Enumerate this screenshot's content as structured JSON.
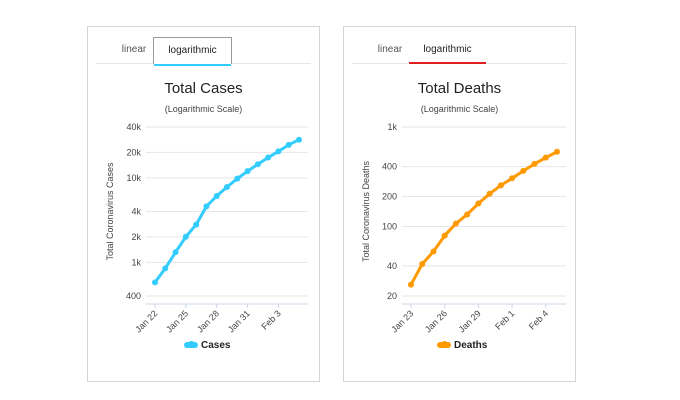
{
  "cases_panel": {
    "tabs": [
      {
        "label": "linear",
        "active": false
      },
      {
        "label": "logarithmic",
        "active": true
      }
    ],
    "accent_color": "#33ccff",
    "title": "Total Cases",
    "subtitle": "(Logarithmic Scale)",
    "legend_label": "Cases"
  },
  "deaths_panel": {
    "tabs": [
      {
        "label": "linear",
        "active": false
      },
      {
        "label": "logarithmic",
        "active": true
      }
    ],
    "accent_color": "#ff9900",
    "underline_color": "#e02020",
    "title": "Total Deaths",
    "subtitle": "(Logarithmic Scale)",
    "legend_label": "Deaths"
  },
  "chart_data": [
    {
      "type": "line",
      "title": "Total Cases",
      "subtitle": "(Logarithmic Scale)",
      "ylabel": "Total Coronavirus Cases",
      "xlabel": "",
      "y_scale": "log",
      "ylim": [
        400,
        40000
      ],
      "y_ticks": [
        400,
        1000,
        2000,
        4000,
        10000,
        20000,
        40000
      ],
      "y_tick_labels": [
        "400",
        "1k",
        "2k",
        "4k",
        "10k",
        "20k",
        "40k"
      ],
      "x": [
        "Jan 22",
        "Jan 23",
        "Jan 24",
        "Jan 25",
        "Jan 26",
        "Jan 27",
        "Jan 28",
        "Jan 29",
        "Jan 30",
        "Jan 31",
        "Feb 1",
        "Feb 2",
        "Feb 3",
        "Feb 4",
        "Feb 5"
      ],
      "x_tick_labels": [
        "Jan 22",
        "Jan 25",
        "Jan 28",
        "Jan 31",
        "Feb 3"
      ],
      "x_tick_indices": [
        0,
        3,
        6,
        9,
        12
      ],
      "color": "#33ccff",
      "series": [
        {
          "name": "Cases",
          "values": [
            580,
            850,
            1320,
            2010,
            2800,
            4600,
            6100,
            7800,
            9800,
            12000,
            14500,
            17400,
            20600,
            24600,
            28300
          ]
        }
      ]
    },
    {
      "type": "line",
      "title": "Total Deaths",
      "subtitle": "(Logarithmic Scale)",
      "ylabel": "Total Coronavirus Deaths",
      "xlabel": "",
      "y_scale": "log",
      "ylim": [
        20,
        1000
      ],
      "y_ticks": [
        20,
        40,
        100,
        200,
        400,
        1000
      ],
      "y_tick_labels": [
        "20",
        "40",
        "100",
        "200",
        "400",
        "1k"
      ],
      "x": [
        "Jan 23",
        "Jan 24",
        "Jan 25",
        "Jan 26",
        "Jan 27",
        "Jan 28",
        "Jan 29",
        "Jan 30",
        "Jan 31",
        "Feb 1",
        "Feb 2",
        "Feb 3",
        "Feb 4",
        "Feb 5"
      ],
      "x_tick_labels": [
        "Jan 23",
        "Jan 26",
        "Jan 29",
        "Feb 1",
        "Feb 4"
      ],
      "x_tick_indices": [
        0,
        3,
        6,
        9,
        12
      ],
      "color": "#ff9900",
      "series": [
        {
          "name": "Deaths",
          "values": [
            26,
            42,
            56,
            81,
            107,
            132,
            170,
            213,
            259,
            305,
            362,
            426,
            492,
            564
          ]
        }
      ]
    }
  ]
}
